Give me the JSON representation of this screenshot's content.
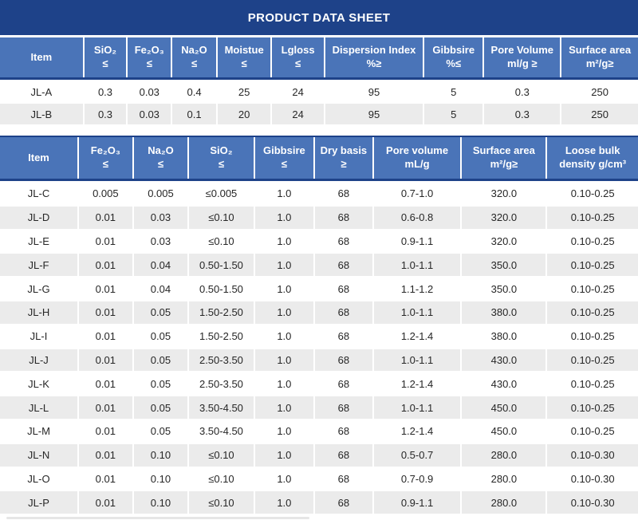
{
  "title": "PRODUCT DATA SHEET",
  "colors": {
    "banner_navy": "#1e4289",
    "header_blue": "#4a74b8",
    "alt_row_gray": "#ebebeb",
    "text": "#262626"
  },
  "tables": [
    {
      "name": "table-1",
      "headers": [
        {
          "label": "Item",
          "symbol": ""
        },
        {
          "label": "SiO₂",
          "symbol": "≤"
        },
        {
          "label": "Fe₂O₃",
          "symbol": "≤"
        },
        {
          "label": "Na₂O",
          "symbol": "≤"
        },
        {
          "label": "Moistue",
          "symbol": "≤"
        },
        {
          "label": "Lgloss",
          "symbol": "≤"
        },
        {
          "label": "Dispersion Index",
          "symbol": "%≥"
        },
        {
          "label": "Gibbsire",
          "symbol": "%≤"
        },
        {
          "label": "Pore Volume",
          "symbol": "ml/g ≥"
        },
        {
          "label": "Surface area",
          "symbol": "m²/g≥"
        }
      ],
      "rows": [
        [
          "JL-A",
          "0.3",
          "0.03",
          "0.4",
          "25",
          "24",
          "95",
          "5",
          "0.3",
          "250"
        ],
        [
          "JL-B",
          "0.3",
          "0.03",
          "0.1",
          "20",
          "24",
          "95",
          "5",
          "0.3",
          "250"
        ]
      ]
    },
    {
      "name": "table-2",
      "headers": [
        {
          "label": "Item",
          "symbol": ""
        },
        {
          "label": "Fe₂O₃",
          "symbol": "≤"
        },
        {
          "label": "Na₂O",
          "symbol": "≤"
        },
        {
          "label": "SiO₂",
          "symbol": "≤"
        },
        {
          "label": "Gibbsire",
          "symbol": "≤"
        },
        {
          "label": "Dry basis",
          "symbol": "≥"
        },
        {
          "label": "Pore volume",
          "symbol": "mL/g"
        },
        {
          "label": "Surface area",
          "symbol": "m²/g≥"
        },
        {
          "label": "Loose bulk",
          "symbol": "density g/cm³"
        }
      ],
      "rows": [
        [
          "JL-C",
          "0.005",
          "0.005",
          "≤0.005",
          "1.0",
          "68",
          "0.7-1.0",
          "320.0",
          "0.10-0.25"
        ],
        [
          "JL-D",
          "0.01",
          "0.03",
          "≤0.10",
          "1.0",
          "68",
          "0.6-0.8",
          "320.0",
          "0.10-0.25"
        ],
        [
          "JL-E",
          "0.01",
          "0.03",
          "≤0.10",
          "1.0",
          "68",
          "0.9-1.1",
          "320.0",
          "0.10-0.25"
        ],
        [
          "JL-F",
          "0.01",
          "0.04",
          "0.50-1.50",
          "1.0",
          "68",
          "1.0-1.1",
          "350.0",
          "0.10-0.25"
        ],
        [
          "JL-G",
          "0.01",
          "0.04",
          "0.50-1.50",
          "1.0",
          "68",
          "1.1-1.2",
          "350.0",
          "0.10-0.25"
        ],
        [
          "JL-H",
          "0.01",
          "0.05",
          "1.50-2.50",
          "1.0",
          "68",
          "1.0-1.1",
          "380.0",
          "0.10-0.25"
        ],
        [
          "JL-I",
          "0.01",
          "0.05",
          "1.50-2.50",
          "1.0",
          "68",
          "1.2-1.4",
          "380.0",
          "0.10-0.25"
        ],
        [
          "JL-J",
          "0.01",
          "0.05",
          "2.50-3.50",
          "1.0",
          "68",
          "1.0-1.1",
          "430.0",
          "0.10-0.25"
        ],
        [
          "JL-K",
          "0.01",
          "0.05",
          "2.50-3.50",
          "1.0",
          "68",
          "1.2-1.4",
          "430.0",
          "0.10-0.25"
        ],
        [
          "JL-L",
          "0.01",
          "0.05",
          "3.50-4.50",
          "1.0",
          "68",
          "1.0-1.1",
          "450.0",
          "0.10-0.25"
        ],
        [
          "JL-M",
          "0.01",
          "0.05",
          "3.50-4.50",
          "1.0",
          "68",
          "1.2-1.4",
          "450.0",
          "0.10-0.25"
        ],
        [
          "JL-N",
          "0.01",
          "0.10",
          "≤0.10",
          "1.0",
          "68",
          "0.5-0.7",
          "280.0",
          "0.10-0.30"
        ],
        [
          "JL-O",
          "0.01",
          "0.10",
          "≤0.10",
          "1.0",
          "68",
          "0.7-0.9",
          "280.0",
          "0.10-0.30"
        ],
        [
          "JL-P",
          "0.01",
          "0.10",
          "≤0.10",
          "1.0",
          "68",
          "0.9-1.1",
          "280.0",
          "0.10-0.30"
        ]
      ]
    }
  ]
}
